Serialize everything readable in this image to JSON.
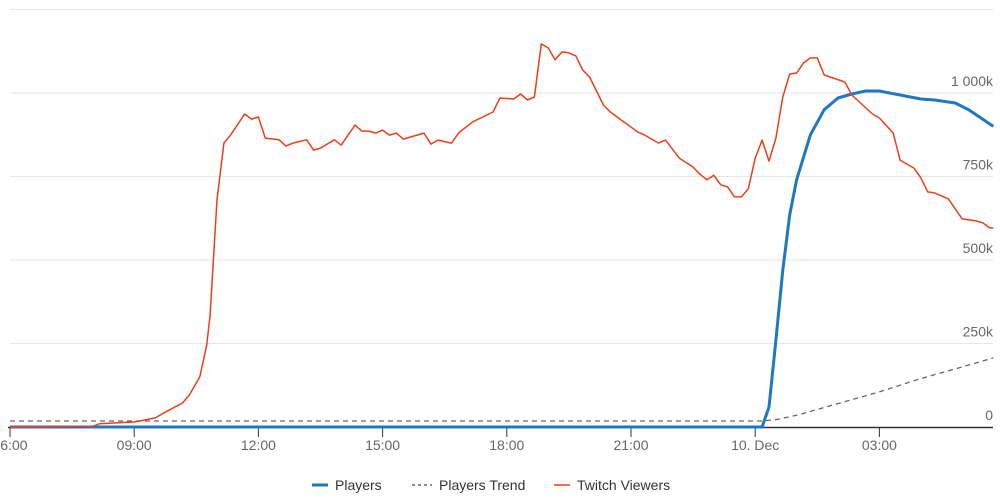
{
  "chart_data": {
    "type": "line",
    "title": "",
    "xlabel": "",
    "ylabel": "",
    "x_range": [
      "Dec 9 06:00",
      "Dec 10 05:45"
    ],
    "ylim": [
      0,
      1250
    ],
    "y_ticks": [
      0,
      250,
      500,
      750,
      1000
    ],
    "y_tick_labels": [
      "0",
      "250k",
      "500k",
      "750k",
      "1 000k"
    ],
    "x_ticks": [
      "Dec 9 06:00",
      "Dec 9 09:00",
      "Dec 9 12:00",
      "Dec 9 15:00",
      "Dec 9 18:00",
      "Dec 9 21:00",
      "Dec 10 00:00",
      "Dec 10 03:00"
    ],
    "x_tick_labels": [
      "06:00",
      "09:00",
      "12:00",
      "15:00",
      "18:00",
      "21:00",
      "10. Dec",
      "03:00"
    ],
    "grid": true,
    "legend_position": "bottom",
    "series": [
      {
        "name": "Players",
        "color": "#1f78c1",
        "style": "solid",
        "points": [
          [
            "Dec 9 06:00",
            0
          ],
          [
            "Dec 10 00:10",
            0
          ],
          [
            "Dec 10 00:20",
            60
          ],
          [
            "Dec 10 00:30",
            260
          ],
          [
            "Dec 10 00:40",
            470
          ],
          [
            "Dec 10 00:50",
            635
          ],
          [
            "Dec 10 01:00",
            740
          ],
          [
            "Dec 10 01:20",
            875
          ],
          [
            "Dec 10 01:40",
            950
          ],
          [
            "Dec 10 02:00",
            985
          ],
          [
            "Dec 10 02:20",
            997
          ],
          [
            "Dec 10 02:40",
            1006
          ],
          [
            "Dec 10 03:00",
            1006
          ],
          [
            "Dec 10 03:30",
            994
          ],
          [
            "Dec 10 04:00",
            982
          ],
          [
            "Dec 10 04:20",
            979
          ],
          [
            "Dec 10 04:50",
            970
          ],
          [
            "Dec 10 05:10",
            949
          ],
          [
            "Dec 10 05:45",
            900
          ]
        ]
      },
      {
        "name": "Players Trend",
        "color": "#666666",
        "style": "dashed",
        "points": [
          [
            "Dec 9 06:00",
            18
          ],
          [
            "Dec 10 00:10",
            18
          ],
          [
            "Dec 10 00:30",
            22
          ],
          [
            "Dec 10 01:00",
            35
          ],
          [
            "Dec 10 02:00",
            70
          ],
          [
            "Dec 10 03:00",
            105
          ],
          [
            "Dec 10 04:00",
            145
          ],
          [
            "Dec 10 05:00",
            180
          ],
          [
            "Dec 10 05:45",
            207
          ]
        ]
      },
      {
        "name": "Twitch Viewers",
        "color": "#e8401c",
        "style": "solid",
        "points": [
          [
            "Dec 9 06:00",
            0
          ],
          [
            "Dec 9 08:00",
            2
          ],
          [
            "Dec 9 08:10",
            10
          ],
          [
            "Dec 9 09:00",
            15
          ],
          [
            "Dec 9 09:30",
            27
          ],
          [
            "Dec 9 09:50",
            50
          ],
          [
            "Dec 9 10:10",
            72
          ],
          [
            "Dec 9 10:20",
            96
          ],
          [
            "Dec 9 10:35",
            150
          ],
          [
            "Dec 9 10:45",
            245
          ],
          [
            "Dec 9 10:50",
            335
          ],
          [
            "Dec 9 11:00",
            680
          ],
          [
            "Dec 9 11:10",
            850
          ],
          [
            "Dec 9 11:20",
            875
          ],
          [
            "Dec 9 11:40",
            937
          ],
          [
            "Dec 9 11:50",
            922
          ],
          [
            "Dec 9 12:00",
            928
          ],
          [
            "Dec 9 12:10",
            865
          ],
          [
            "Dec 9 12:30",
            860
          ],
          [
            "Dec 9 12:40",
            841
          ],
          [
            "Dec 9 12:50",
            850
          ],
          [
            "Dec 9 13:10",
            860
          ],
          [
            "Dec 9 13:20",
            829
          ],
          [
            "Dec 9 13:30",
            835
          ],
          [
            "Dec 9 13:50",
            860
          ],
          [
            "Dec 9 14:00",
            844
          ],
          [
            "Dec 9 14:20",
            904
          ],
          [
            "Dec 9 14:30",
            886
          ],
          [
            "Dec 9 14:40",
            886
          ],
          [
            "Dec 9 14:50",
            880
          ],
          [
            "Dec 9 15:00",
            889
          ],
          [
            "Dec 9 15:10",
            874
          ],
          [
            "Dec 9 15:20",
            880
          ],
          [
            "Dec 9 15:30",
            862
          ],
          [
            "Dec 9 15:40",
            868
          ],
          [
            "Dec 9 16:00",
            880
          ],
          [
            "Dec 9 16:10",
            847
          ],
          [
            "Dec 9 16:20",
            859
          ],
          [
            "Dec 9 16:40",
            850
          ],
          [
            "Dec 9 16:50",
            880
          ],
          [
            "Dec 9 17:10",
            913
          ],
          [
            "Dec 9 17:40",
            943
          ],
          [
            "Dec 9 17:50",
            985
          ],
          [
            "Dec 9 18:10",
            982
          ],
          [
            "Dec 9 18:20",
            997
          ],
          [
            "Dec 9 18:30",
            979
          ],
          [
            "Dec 9 18:40",
            988
          ],
          [
            "Dec 9 18:50",
            1147
          ],
          [
            "Dec 9 19:00",
            1135
          ],
          [
            "Dec 9 19:10",
            1099
          ],
          [
            "Dec 9 19:20",
            1123
          ],
          [
            "Dec 9 19:30",
            1120
          ],
          [
            "Dec 9 19:40",
            1111
          ],
          [
            "Dec 9 19:50",
            1069
          ],
          [
            "Dec 9 20:00",
            1048
          ],
          [
            "Dec 9 20:20",
            964
          ],
          [
            "Dec 9 20:30",
            943
          ],
          [
            "Dec 9 20:50",
            913
          ],
          [
            "Dec 9 21:10",
            883
          ],
          [
            "Dec 9 21:20",
            874
          ],
          [
            "Dec 9 21:40",
            850
          ],
          [
            "Dec 9 21:50",
            859
          ],
          [
            "Dec 9 22:10",
            805
          ],
          [
            "Dec 9 22:30",
            778
          ],
          [
            "Dec 9 22:40",
            757
          ],
          [
            "Dec 9 22:50",
            740
          ],
          [
            "Dec 9 23:00",
            754
          ],
          [
            "Dec 9 23:10",
            725
          ],
          [
            "Dec 9 23:20",
            719
          ],
          [
            "Dec 9 23:30",
            689
          ],
          [
            "Dec 9 23:40",
            689
          ],
          [
            "Dec 9 23:50",
            713
          ],
          [
            "Dec 10 00:00",
            805
          ],
          [
            "Dec 10 00:10",
            859
          ],
          [
            "Dec 10 00:20",
            796
          ],
          [
            "Dec 10 00:30",
            865
          ],
          [
            "Dec 10 00:40",
            988
          ],
          [
            "Dec 10 00:50",
            1057
          ],
          [
            "Dec 10 01:00",
            1060
          ],
          [
            "Dec 10 01:10",
            1090
          ],
          [
            "Dec 10 01:20",
            1105
          ],
          [
            "Dec 10 01:30",
            1105
          ],
          [
            "Dec 10 01:40",
            1054
          ],
          [
            "Dec 10 02:10",
            1033
          ],
          [
            "Dec 10 02:20",
            994
          ],
          [
            "Dec 10 02:50",
            937
          ],
          [
            "Dec 10 03:00",
            925
          ],
          [
            "Dec 10 03:20",
            880
          ],
          [
            "Dec 10 03:30",
            799
          ],
          [
            "Dec 10 03:50",
            775
          ],
          [
            "Dec 10 04:00",
            746
          ],
          [
            "Dec 10 04:10",
            704
          ],
          [
            "Dec 10 04:20",
            701
          ],
          [
            "Dec 10 04:40",
            683
          ],
          [
            "Dec 10 05:00",
            623
          ],
          [
            "Dec 10 05:20",
            617
          ],
          [
            "Dec 10 05:30",
            611
          ],
          [
            "Dec 10 05:40",
            596
          ],
          [
            "Dec 10 05:45",
            596
          ]
        ]
      }
    ]
  },
  "colors": {
    "grid": "#e6e6e6",
    "axis": "#333333",
    "tick_text": "#666666",
    "legend_text": "#333333"
  }
}
